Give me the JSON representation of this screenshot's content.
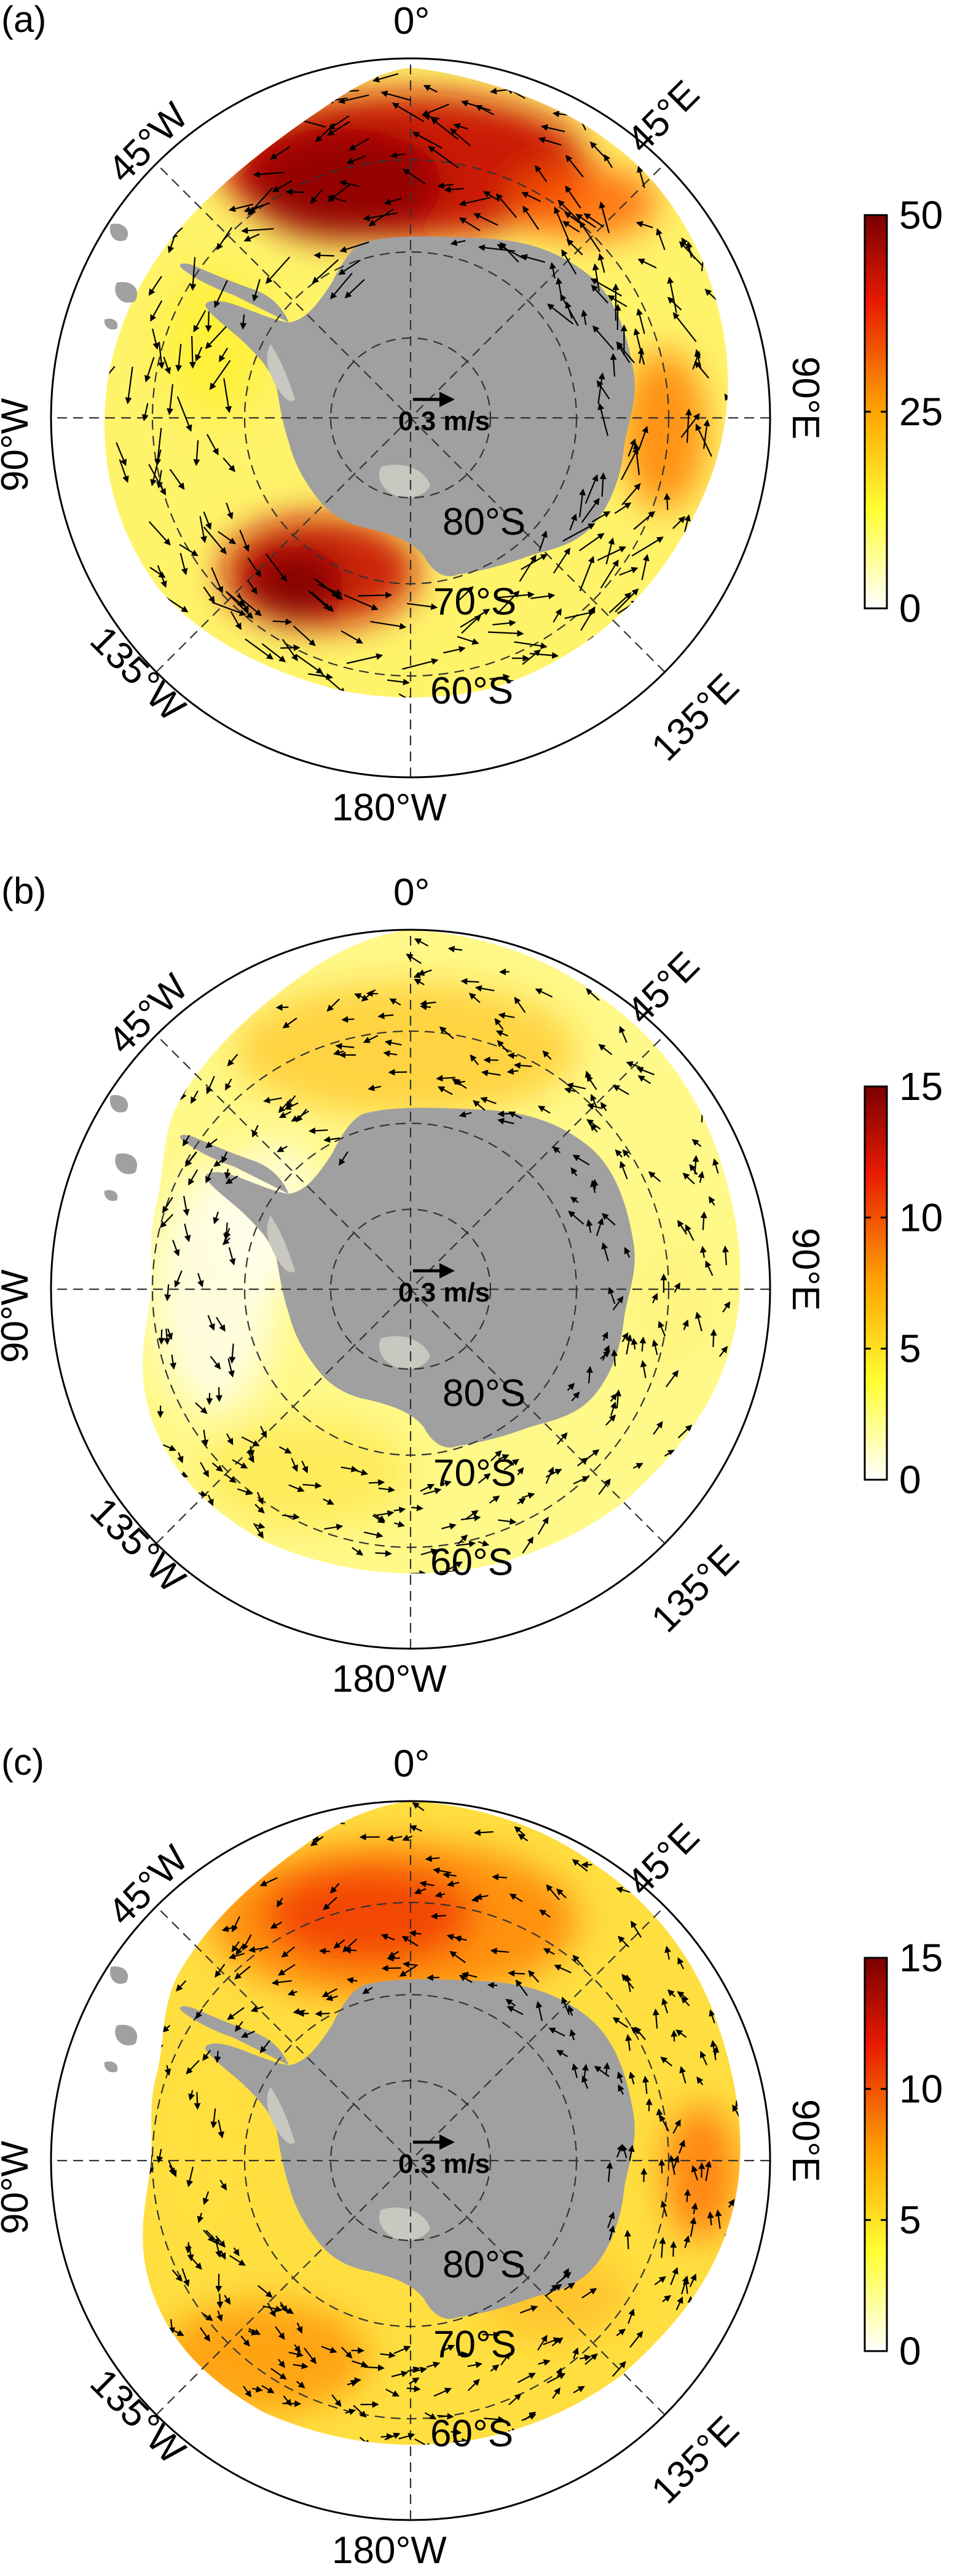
{
  "panels": [
    {
      "id": "a",
      "label": "(a)",
      "colorbar": {
        "min": 0,
        "max": 50,
        "ticks": [
          "50",
          "25",
          "0"
        ]
      },
      "field_level": 1.0
    },
    {
      "id": "b",
      "label": "(b)",
      "colorbar": {
        "min": 0,
        "max": 15,
        "ticks": [
          "15",
          "10",
          "5",
          "0"
        ]
      },
      "field_level": 0.35
    },
    {
      "id": "c",
      "label": "(c)",
      "colorbar": {
        "min": 0,
        "max": 15,
        "ticks": [
          "15",
          "10",
          "5",
          "0"
        ]
      },
      "field_level": 0.55
    }
  ],
  "longitude_labels": {
    "top": "0°",
    "ne": "45°E",
    "e": "90°E",
    "se": "135°E",
    "s": "180°W",
    "sw": "135°W",
    "w": "90°W",
    "nw": "45°W"
  },
  "latitude_labels": [
    "80°S",
    "70°S",
    "60°S"
  ],
  "reference_vector_label": "0.3 m/s",
  "colors": {
    "land": "#a0a0a0",
    "ice_shelf": "#c8c8c0",
    "colormap": [
      "#ffffff",
      "#ffff00",
      "#ffa500",
      "#ff0000",
      "#8b0000"
    ]
  }
}
